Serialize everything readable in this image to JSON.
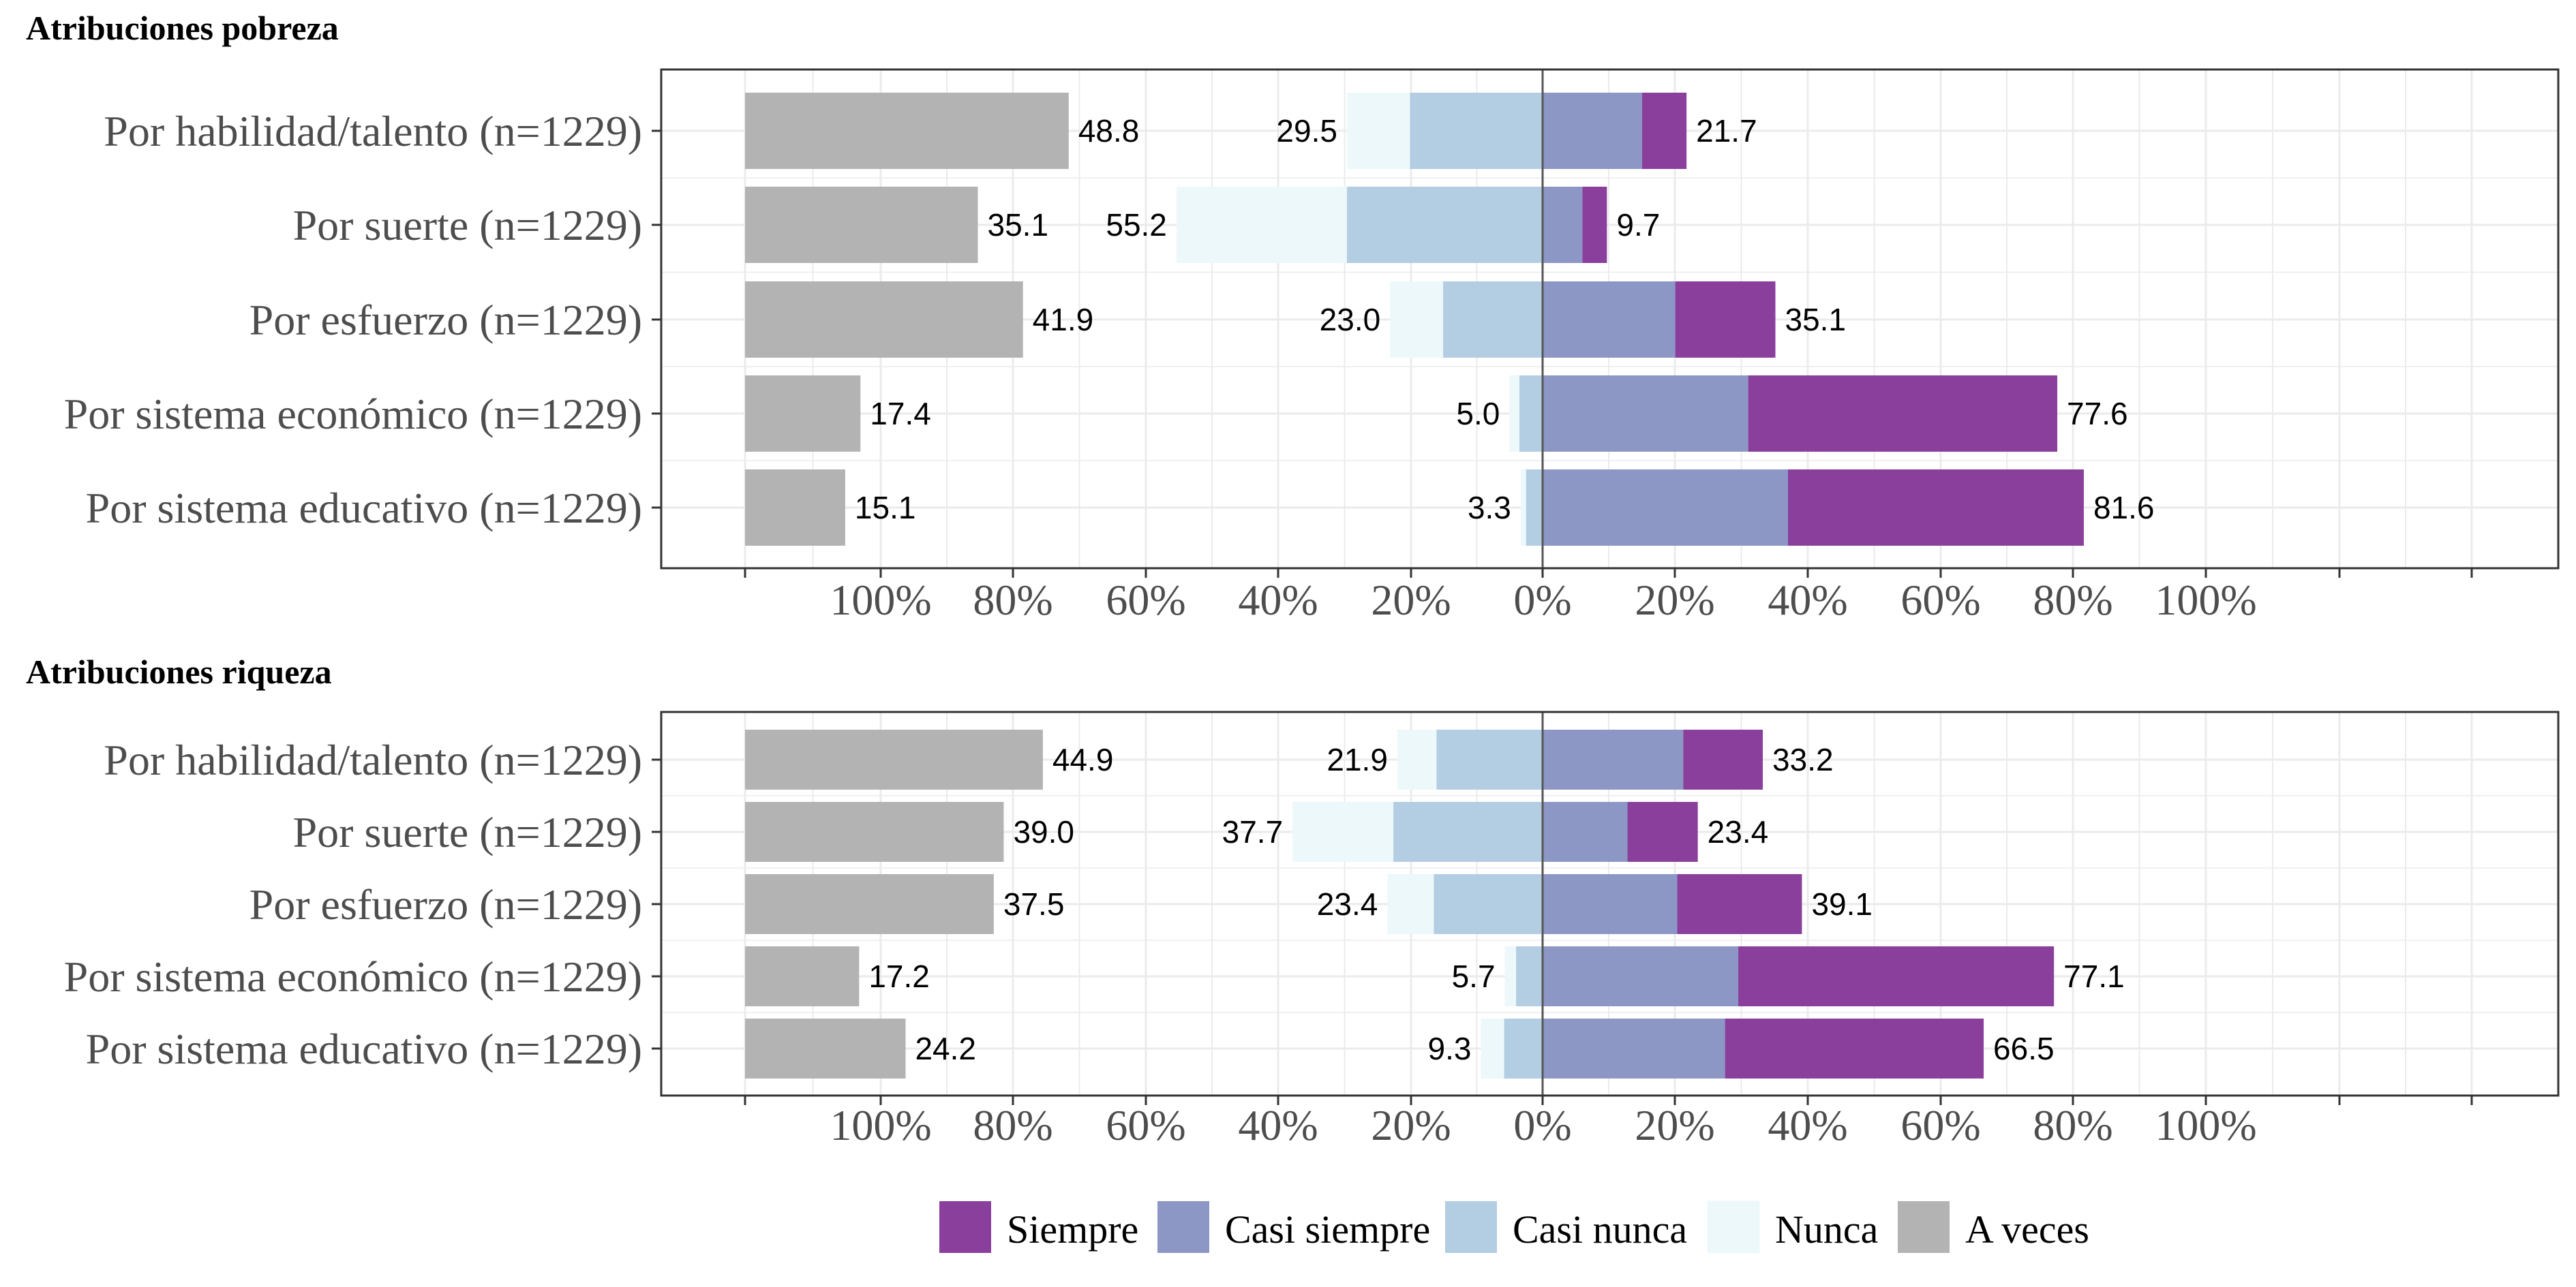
{
  "chart_data": [
    {
      "type": "bar",
      "title": "Atribuciones pobreza",
      "categories": [
        "Por habilidad/talento (n=1229)",
        "Por suerte (n=1229)",
        "Por esfuerzo (n=1229)",
        "Por sistema económico (n=1229)",
        "Por sistema educativo (n=1229)"
      ],
      "series": [
        {
          "name": "Siempre",
          "values": [
            6.7,
            3.7,
            15.1,
            46.6,
            44.6
          ]
        },
        {
          "name": "Casi siempre",
          "values": [
            15.0,
            6.0,
            20.0,
            31.0,
            37.0
          ]
        },
        {
          "name": "Casi nunca",
          "values": [
            20.0,
            29.5,
            15.0,
            3.5,
            2.5
          ]
        },
        {
          "name": "Nunca",
          "values": [
            9.5,
            25.7,
            8.0,
            1.5,
            0.8
          ]
        },
        {
          "name": "A veces",
          "values": [
            48.8,
            35.1,
            41.9,
            17.4,
            15.1
          ]
        }
      ],
      "labels": {
        "positive": [
          "21.7",
          "9.7",
          "35.1",
          "77.6",
          "81.6"
        ],
        "negative": [
          "29.5",
          "55.2",
          "23.0",
          "5.0",
          "3.3"
        ],
        "neutral": [
          "48.8",
          "35.1",
          "41.9",
          "17.4",
          "15.1"
        ]
      },
      "tick_labels": [
        "100%",
        "80%",
        "60%",
        "40%",
        "20%",
        "0%",
        "20%",
        "40%",
        "60%",
        "80%",
        "100%"
      ],
      "xlim": [
        -100,
        100
      ]
    },
    {
      "type": "bar",
      "title": "Atribuciones riqueza",
      "categories": [
        "Por habilidad/talento (n=1229)",
        "Por suerte (n=1229)",
        "Por esfuerzo (n=1229)",
        "Por sistema económico (n=1229)",
        "Por sistema educativo (n=1229)"
      ],
      "series": [
        {
          "name": "Siempre",
          "values": [
            12.0,
            10.6,
            18.8,
            47.6,
            39.0
          ]
        },
        {
          "name": "Casi siempre",
          "values": [
            21.2,
            12.8,
            20.3,
            29.5,
            27.5
          ]
        },
        {
          "name": "Casi nunca",
          "values": [
            16.0,
            22.5,
            16.4,
            4.0,
            5.8
          ]
        },
        {
          "name": "Nunca",
          "values": [
            5.9,
            15.2,
            7.0,
            1.7,
            3.5
          ]
        },
        {
          "name": "A veces",
          "values": [
            44.9,
            39.0,
            37.5,
            17.2,
            24.2
          ]
        }
      ],
      "labels": {
        "positive": [
          "33.2",
          "23.4",
          "39.1",
          "77.1",
          "66.5"
        ],
        "negative": [
          "21.9",
          "37.7",
          "23.4",
          "5.7",
          "9.3"
        ],
        "neutral": [
          "44.9",
          "39.0",
          "37.5",
          "17.2",
          "24.2"
        ]
      },
      "tick_labels": [
        "100%",
        "80%",
        "60%",
        "40%",
        "20%",
        "0%",
        "20%",
        "40%",
        "60%",
        "80%",
        "100%"
      ],
      "xlim": [
        -100,
        100
      ]
    }
  ],
  "legend": {
    "placement": "bottom",
    "items": [
      {
        "name": "Siempre",
        "color": "#8a3f9c"
      },
      {
        "name": "Casi siempre",
        "color": "#8c97c6"
      },
      {
        "name": "Casi nunca",
        "color": "#b3cde3"
      },
      {
        "name": "Nunca",
        "color": "#edf8fb"
      },
      {
        "name": "A veces",
        "color": "#b3b3b3"
      }
    ]
  },
  "colors": {
    "siempre": "#8a3f9c",
    "casi_siempre": "#8c97c6",
    "casi_nunca": "#b3cde3",
    "nunca": "#edf8fb",
    "a_veces": "#b3b3b3",
    "grid": "#ebebeb",
    "panel_border": "#333333"
  }
}
